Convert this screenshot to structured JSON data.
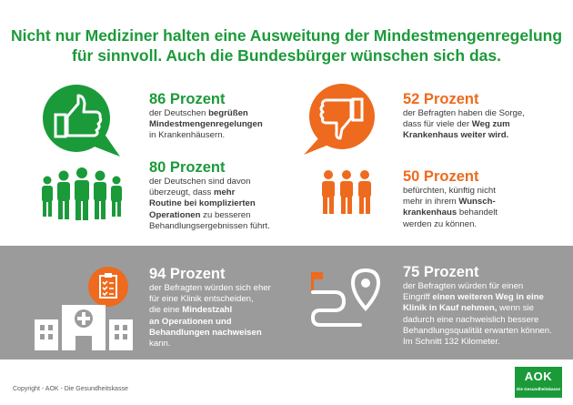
{
  "title": {
    "line1": "Nicht nur Mediziner halten eine Ausweitung der Mindestmengenregelung",
    "line2": "für sinnvoll. Auch die Bundesbürger wünschen sich das."
  },
  "stats": {
    "s86": {
      "pct": "86 Prozent",
      "t1": "der Deutschen ",
      "b1": "begrüßen",
      "b2": "Mindestmengenregelungen",
      "t2": "in Krankenhäusern."
    },
    "s80": {
      "pct": "80 Prozent",
      "t1": "der Deutschen sind davon",
      "t2": "überzeugt, dass ",
      "b1": "mehr",
      "b2": "Routine bei komplizierten",
      "b3": "Operationen",
      "t3": " zu besseren",
      "t4": "Behandlungsergebnissen führt."
    },
    "s52": {
      "pct": "52 Prozent",
      "t1": "der Befragten haben die Sorge,",
      "t2": "dass für viele der ",
      "b1": "Weg zum",
      "b2": "Krankenhaus weiter wird."
    },
    "s50": {
      "pct": "50 Prozent",
      "t1": "befürchten, künftig nicht",
      "t2": "mehr in ihrem ",
      "b1": "Wunsch-",
      "b2": "krankenhaus",
      "t3": " behandelt",
      "t4": "werden zu können."
    },
    "s94": {
      "pct": "94 Prozent",
      "t1": "der Befragten würden sich eher",
      "t2": "für eine Klinik entscheiden,",
      "t3": "die eine ",
      "b1": "Mindestzahl",
      "b2": "an Operationen und",
      "b3": "Behandlungen nachweisen",
      "t4": "kann."
    },
    "s75": {
      "pct": "75 Prozent",
      "t1": "der Befragten würden für einen",
      "t2": "Eingriff ",
      "b1": "einen weiteren Weg in eine",
      "b2": "Klinik in Kauf nehmen,",
      "t3": " wenn sie",
      "t4": "dadurch eine nachweislich bessere",
      "t5": "Behandlungsqualität erwarten können.",
      "t6": "Im Schnitt 132 Kilometer."
    }
  },
  "footer": "Copyright - AOK - Die Gesundheitskasse",
  "logo": {
    "name": "AOK",
    "tagline": "Die Gesundheitskasse"
  },
  "colors": {
    "green": "#1b9a3a",
    "orange": "#ee6a1e",
    "gray": "#9b9b9b"
  },
  "icons": [
    "thumbs-up-icon",
    "people-group-icon",
    "thumbs-down-icon",
    "clipboard-checklist-icon",
    "hospital-icon",
    "route-pin-icon"
  ]
}
